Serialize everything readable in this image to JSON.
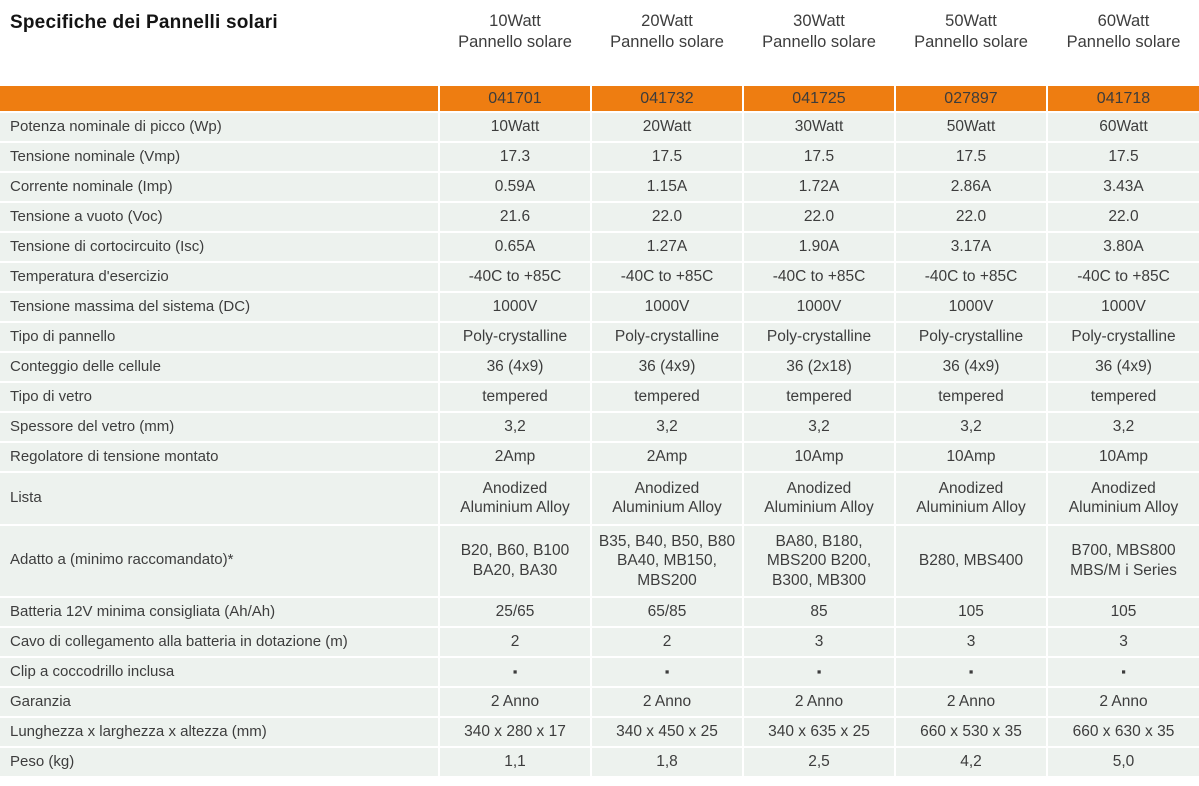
{
  "title": "Specifiche dei Pannelli solari",
  "colors": {
    "accent_orange": "#ee7d11",
    "row_background": "#edf2ee",
    "text": "#3d3d3d",
    "title_text": "#141414"
  },
  "columns": [
    {
      "watt": "10Watt",
      "subtitle": "Pannello solare",
      "code": "041701"
    },
    {
      "watt": "20Watt",
      "subtitle": "Pannello solare",
      "code": "041732"
    },
    {
      "watt": "30Watt",
      "subtitle": "Pannello solare",
      "code": "041725"
    },
    {
      "watt": "50Watt",
      "subtitle": "Pannello solare",
      "code": "027897"
    },
    {
      "watt": "60Watt",
      "subtitle": "Pannello solare",
      "code": "041718"
    }
  ],
  "rows": [
    {
      "label": "Potenza nominale di picco (Wp)",
      "values": [
        "10Watt",
        "20Watt",
        "30Watt",
        "50Watt",
        "60Watt"
      ]
    },
    {
      "label": "Tensione nominale (Vmp)",
      "values": [
        "17.3",
        "17.5",
        "17.5",
        "17.5",
        "17.5"
      ]
    },
    {
      "label": "Corrente nominale (Imp)",
      "values": [
        "0.59A",
        "1.15A",
        "1.72A",
        "2.86A",
        "3.43A"
      ]
    },
    {
      "label": "Tensione a vuoto (Voc)",
      "values": [
        "21.6",
        "22.0",
        "22.0",
        "22.0",
        "22.0"
      ]
    },
    {
      "label": "Tensione di cortocircuito (Isc)",
      "values": [
        "0.65A",
        "1.27A",
        "1.90A",
        "3.17A",
        "3.80A"
      ]
    },
    {
      "label": "Temperatura d'esercizio",
      "values": [
        "-40C to +85C",
        "-40C to +85C",
        "-40C to +85C",
        "-40C to +85C",
        "-40C to +85C"
      ]
    },
    {
      "label": "Tensione massima del sistema (DC)",
      "values": [
        "1000V",
        "1000V",
        "1000V",
        "1000V",
        "1000V"
      ]
    },
    {
      "label": "Tipo di pannello",
      "values": [
        "Poly-crystalline",
        "Poly-crystalline",
        "Poly-crystalline",
        "Poly-crystalline",
        "Poly-crystalline"
      ]
    },
    {
      "label": "Conteggio delle cellule",
      "values": [
        "36 (4x9)",
        "36 (4x9)",
        "36 (2x18)",
        "36 (4x9)",
        "36 (4x9)"
      ]
    },
    {
      "label": "Tipo di vetro",
      "values": [
        "tempered",
        "tempered",
        "tempered",
        "tempered",
        "tempered"
      ]
    },
    {
      "label": "Spessore del vetro (mm)",
      "values": [
        "3,2",
        "3,2",
        "3,2",
        "3,2",
        "3,2"
      ]
    },
    {
      "label": "Regolatore di tensione montato",
      "values": [
        "2Amp",
        "2Amp",
        "10Amp",
        "10Amp",
        "10Amp"
      ]
    },
    {
      "label": "Lista",
      "tall": true,
      "values": [
        "Anodized Aluminium Alloy",
        "Anodized Aluminium Alloy",
        "Anodized Aluminium Alloy",
        "Anodized Aluminium Alloy",
        "Anodized Aluminium Alloy"
      ]
    },
    {
      "label": "Adatto a (minimo raccomandato)*",
      "tall": true,
      "values": [
        "B20, B60, B100 BA20, BA30",
        "B35, B40, B50, B80 BA40, MB150, MBS200",
        "BA80, B180, MBS200 B200, B300, MB300",
        "B280, MBS400",
        "B700, MBS800 MBS/M i Series"
      ]
    },
    {
      "label": "Batteria 12V minima consigliata (Ah/Ah)",
      "values": [
        "25/65",
        "65/85",
        "85",
        "105",
        "105"
      ]
    },
    {
      "label": "Cavo di collegamento alla batteria in dotazione (m)",
      "values": [
        "2",
        "2",
        "3",
        "3",
        "3"
      ]
    },
    {
      "label": "Clip a coccodrillo inclusa",
      "bullet": true,
      "values": [
        "▪",
        "▪",
        "▪",
        "▪",
        "▪"
      ]
    },
    {
      "label": "Garanzia",
      "values": [
        "2 Anno",
        "2 Anno",
        "2 Anno",
        "2 Anno",
        "2 Anno"
      ]
    },
    {
      "label": "Lunghezza x larghezza x altezza (mm)",
      "values": [
        "340 x 280 x 17",
        "340 x 450 x 25",
        "340 x 635 x 25",
        "660 x 530 x 35",
        "660 x 630 x 35"
      ]
    },
    {
      "label": "Peso (kg)",
      "values": [
        "1,1",
        "1,8",
        "2,5",
        "4,2",
        "5,0"
      ]
    }
  ]
}
